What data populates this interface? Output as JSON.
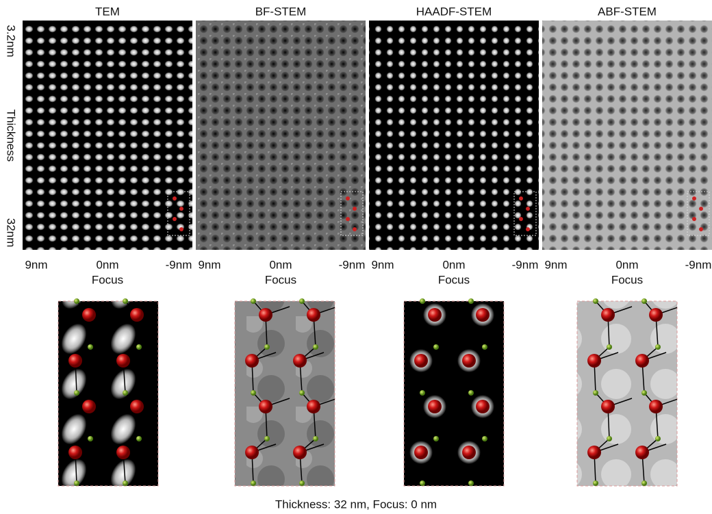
{
  "panels": [
    {
      "title": "TEM"
    },
    {
      "title": "BF-STEM"
    },
    {
      "title": "HAADF-STEM"
    },
    {
      "title": "ABF-STEM"
    }
  ],
  "thickness_axis": {
    "top": "3.2nm",
    "label": "Thickness",
    "bottom": "32nm"
  },
  "focus_axis": {
    "left": "9nm",
    "center": "0nm",
    "right": "-9nm",
    "label": "Focus"
  },
  "caption": "Thickness: 32 nm, Focus: 0 nm"
}
